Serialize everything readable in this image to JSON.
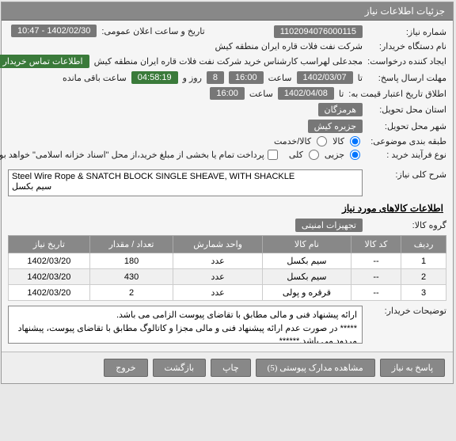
{
  "header": {
    "title": "جزئیات اطلاعات نیاز"
  },
  "labels": {
    "niaz_no": "شماره نیاز:",
    "dastgah": "نام دستگاه خریدار:",
    "ijad": "ایجاد کننده درخواست:",
    "mohlat": "مهلت ارسال پاسخ:",
    "t_etbar": "اطلاق تاریخ اعتبار قیمت به:",
    "tahvil_loc": "استان محل تحویل:",
    "tahvil_city": "شهر محل تحویل:",
    "tabagheh": "طبقه بندی موضوعی:",
    "farayand": "نوع فرآیند خرید :",
    "ta": "تا",
    "public_time": "تاریخ و ساعت اعلان عمومی:",
    "sharh": "شرح کلی نیاز:",
    "goods_title": "اطلاعات کالاهای مورد نیاز",
    "group": "گروه کالا:",
    "tozihat": "توضیحات خریدار:",
    "saat": "ساعت",
    "rooz": "روز و",
    "baghi": "ساعت باقی مانده"
  },
  "vals": {
    "niaz_no": "1102094076000115",
    "dastgah": "شرکت نفت فلات قاره ایران منطقه کیش",
    "ijad_name": "مجدعلی لهراسب کارشناس خرید شرکت نفت فلات قاره ایران منطقه کیش",
    "contact_link": "اطلاعات تماس خریدار",
    "mohlat_date": "1402/03/07",
    "mohlat_time": "16:00",
    "days_left": "8",
    "time_left": "04:58:19",
    "etbar_date": "1402/04/08",
    "etbar_time": "16:00",
    "ostan": "هرمزگان",
    "city": "جزیره کیش",
    "public_dt": "1402/02/30 - 10:47",
    "sharh_text": "Steel Wire Rope & SNATCH BLOCK SINGLE SHEAVE, WITH SHACKLE\nسیم بکسل",
    "group_val": "تجهیزات امنیتی",
    "notes_text": "ارائه پیشنهاد فنی و مالی مطابق با تقاضای پیوست الزامی می باشد.\n***** در صورت عدم ارائه پیشنهاد فنی و مالی مجزا و کاتالوگ مطابق با تقاضای پیوست، پیشنهاد مردود می باشد.******"
  },
  "radio": {
    "kala": "کالا",
    "khedmat": "کالا/خدمت",
    "jozi": "جزیی",
    "koli": "کلی",
    "pardakht": "پرداخت تمام یا بخشی از مبلغ خرید،از محل \"اسناد خزانه اسلامی\" خواهد بود."
  },
  "table": {
    "cols": [
      "ردیف",
      "کد کالا",
      "نام کالا",
      "واحد شمارش",
      "تعداد / مقدار",
      "تاریخ نیاز"
    ],
    "rows": [
      [
        "1",
        "--",
        "سیم بکسل",
        "عدد",
        "180",
        "1402/03/20"
      ],
      [
        "2",
        "--",
        "سیم بکسل",
        "عدد",
        "430",
        "1402/03/20"
      ],
      [
        "3",
        "--",
        "قرقره و پولی",
        "عدد",
        "2",
        "1402/03/20"
      ]
    ]
  },
  "buttons": {
    "pasokh": "پاسخ به نیاز",
    "madarek": "مشاهده مدارک پیوستی (5)",
    "chap": "چاپ",
    "bazgasht": "بازگشت",
    "khorooj": "خروج"
  }
}
